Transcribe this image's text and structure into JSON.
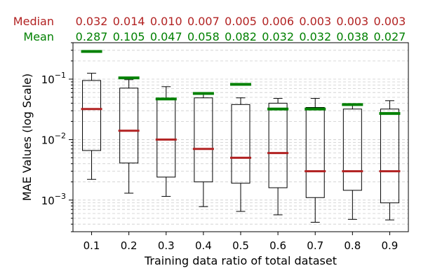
{
  "chart_data": {
    "type": "box",
    "xlabel": "Training data ratio of total dataset",
    "ylabel": "MAE Values (log Scale)",
    "yscale": "log",
    "ylim": [
      0.0003,
      0.4
    ],
    "grid": "y-dashed",
    "categories": [
      "0.1",
      "0.2",
      "0.3",
      "0.4",
      "0.5",
      "0.6",
      "0.7",
      "0.8",
      "0.9"
    ],
    "y_tick_labels": [
      "10^-3",
      "10^-2",
      "10^-1"
    ],
    "boxes": [
      {
        "whisker_low": 0.0022,
        "q1": 0.0066,
        "median": 0.032,
        "q3": 0.095,
        "whisker_high": 0.125
      },
      {
        "whisker_low": 0.0013,
        "q1": 0.0041,
        "median": 0.014,
        "q3": 0.071,
        "whisker_high": 0.098
      },
      {
        "whisker_low": 0.00115,
        "q1": 0.0024,
        "median": 0.01,
        "q3": 0.048,
        "whisker_high": 0.075
      },
      {
        "whisker_low": 0.00078,
        "q1": 0.002,
        "median": 0.007,
        "q3": 0.049,
        "whisker_high": 0.058
      },
      {
        "whisker_low": 0.00065,
        "q1": 0.0019,
        "median": 0.005,
        "q3": 0.038,
        "whisker_high": 0.049
      },
      {
        "whisker_low": 0.00057,
        "q1": 0.0016,
        "median": 0.006,
        "q3": 0.04,
        "whisker_high": 0.048
      },
      {
        "whisker_low": 0.00043,
        "q1": 0.0011,
        "median": 0.003,
        "q3": 0.034,
        "whisker_high": 0.048
      },
      {
        "whisker_low": 0.00048,
        "q1": 0.00145,
        "median": 0.003,
        "q3": 0.032,
        "whisker_high": 0.038
      },
      {
        "whisker_low": 0.00047,
        "q1": 0.0009,
        "median": 0.003,
        "q3": 0.032,
        "whisker_high": 0.044
      }
    ],
    "median_row_label": "Median",
    "median_labels": [
      "0.032",
      "0.014",
      "0.010",
      "0.007",
      "0.005",
      "0.006",
      "0.003",
      "0.003",
      "0.003"
    ],
    "mean_row_label": "Mean",
    "mean_labels": [
      "0.287",
      "0.105",
      "0.047",
      "0.058",
      "0.082",
      "0.032",
      "0.032",
      "0.038",
      "0.027"
    ],
    "mean_values": [
      0.287,
      0.105,
      0.047,
      0.058,
      0.082,
      0.032,
      0.032,
      0.038,
      0.027
    ],
    "colors": {
      "median": "#b22222",
      "mean": "#008000",
      "box": "#000000",
      "grid": "#cccccc"
    }
  }
}
